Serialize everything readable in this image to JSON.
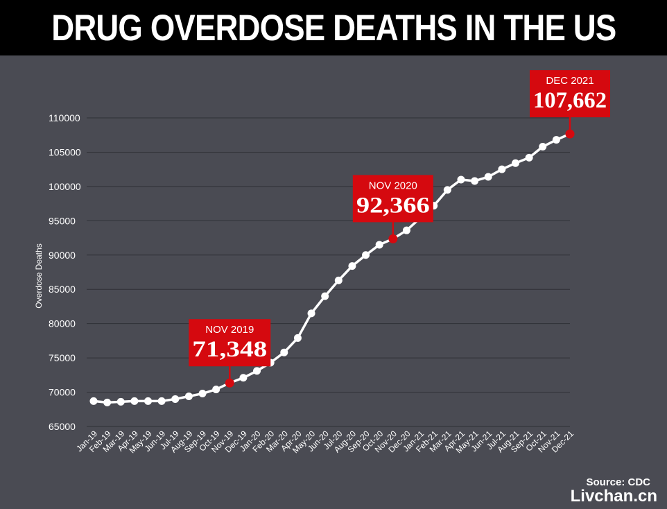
{
  "header": {
    "title": "DRUG OVERDOSE DEATHS IN THE US"
  },
  "footer": {
    "source": "Source: CDC",
    "watermark": "Livchan.cn"
  },
  "colors": {
    "background": "#4a4b53",
    "line": "#ffffff",
    "callout": "#d5090f",
    "grid": "#2f3036"
  },
  "chart_data": {
    "type": "line",
    "title": "DRUG OVERDOSE DEATHS IN THE US",
    "xlabel": "",
    "ylabel": "Overdose Deaths",
    "ylim": [
      65000,
      110000
    ],
    "yticks": [
      65000,
      70000,
      75000,
      80000,
      85000,
      90000,
      95000,
      100000,
      105000,
      110000
    ],
    "grid": true,
    "categories": [
      "Jan-19",
      "Feb-19",
      "Mar-19",
      "Apr-19",
      "May-19",
      "Jun-19",
      "Jul-19",
      "Aug-19",
      "Sep-19",
      "Oct-19",
      "Nov-19",
      "Dec-19",
      "Jan-20",
      "Feb-20",
      "Mar-20",
      "Apr-20",
      "May-20",
      "Jun-20",
      "Jul-20",
      "Aug-20",
      "Sep-20",
      "Oct-20",
      "Nov-20",
      "Dec-20",
      "Jan-21",
      "Feb-21",
      "Mar-21",
      "Apr-21",
      "May-21",
      "Jun-21",
      "Jul-21",
      "Aug-21",
      "Sep-21",
      "Oct-21",
      "Nov-21",
      "Dec-21"
    ],
    "values": [
      68700,
      68500,
      68600,
      68700,
      68700,
      68700,
      69000,
      69400,
      69800,
      70400,
      71348,
      72100,
      73100,
      74300,
      75800,
      77900,
      81500,
      84000,
      86300,
      88400,
      90000,
      91500,
      92366,
      93600,
      95400,
      97200,
      99500,
      101000,
      100800,
      101400,
      102500,
      103400,
      104200,
      105800,
      106800,
      107662
    ],
    "annotations": [
      {
        "x": "Nov-19",
        "label": "NOV 2019",
        "value_text": "71,348"
      },
      {
        "x": "Nov-20",
        "label": "NOV 2020",
        "value_text": "92,366"
      },
      {
        "x": "Dec-21",
        "label": "DEC 2021",
        "value_text": "107,662"
      }
    ]
  }
}
